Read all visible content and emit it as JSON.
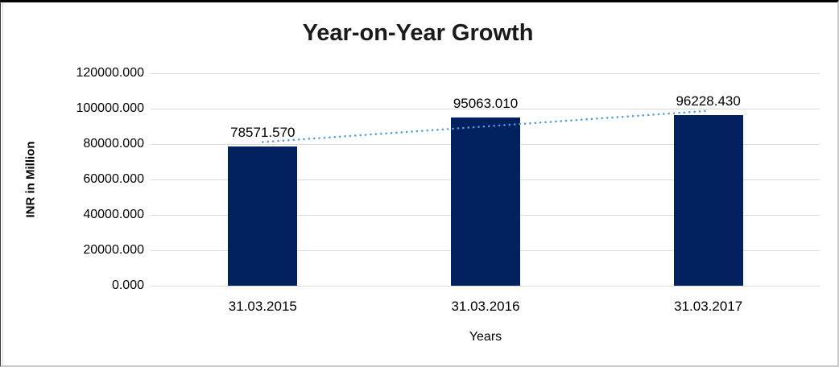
{
  "chart_data": {
    "type": "bar",
    "title": "Year-on-Year Growth",
    "xlabel": "Years",
    "ylabel": "INR in Million",
    "categories": [
      "31.03.2015",
      "31.03.2016",
      "31.03.2017"
    ],
    "values": [
      78571.57,
      95063.01,
      96228.43
    ],
    "data_labels": [
      "78571.570",
      "95063.010",
      "96228.430"
    ],
    "ylim": [
      0,
      120000
    ],
    "ytick_step": 20000,
    "ytick_labels": [
      "0.000",
      "20000.000",
      "40000.000",
      "60000.000",
      "80000.000",
      "100000.000",
      "120000.000"
    ],
    "grid": true,
    "legend": "none",
    "bar_color": "#02215E",
    "gridline_color": "#D9D9D9",
    "trendline": {
      "type": "linear",
      "style": "dotted",
      "color": "#5B9BD5"
    }
  }
}
